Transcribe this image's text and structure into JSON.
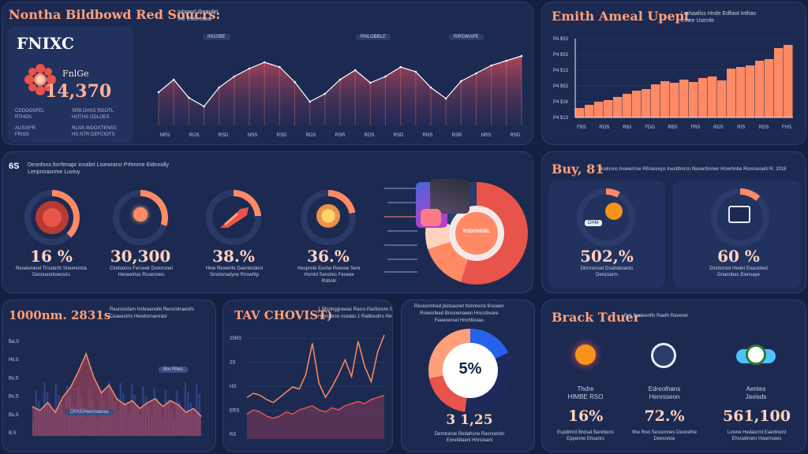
{
  "colors": {
    "bg": "#142042",
    "panel": "#1c2a52",
    "accent": "#ff8a65",
    "salmon": "#ffa07a",
    "red": "#e8534a",
    "blue": "#2563eb",
    "navy": "#1e2a5c"
  },
  "top_left": {
    "title": "Nontha Bildbowd Red Soucrs:",
    "header_note": [
      "Inbrand Ifreenfet",
      "Ine Eotensbal"
    ],
    "logo": "FNIXC",
    "label": "FnlGe",
    "value": "14,370",
    "stats": [
      [
        "CDDOOSFEL",
        "RTHOS"
      ],
      [
        "SRB DHSS RGOTL",
        "HOTHS GDLOES"
      ],
      [
        "AUSIXFR",
        "FRISS"
      ],
      [
        "RLNS INDOXTENSS",
        "HS NTR DEFCIOTS"
      ]
    ],
    "tags": [
      "INGSBE",
      "RNLOBBLE",
      "RIRDMAPE"
    ],
    "x_ticks": [
      "NRS",
      "ROS",
      "RSD",
      "NSS",
      "RSD",
      "RDS",
      "RSR",
      "ROS",
      "RSD",
      "RNS",
      "RSR",
      "NRS",
      "RSD"
    ]
  },
  "top_right": {
    "title": "Emith Ameal Upept",
    "header_note": [
      "Lorhaaliss Hnde Edfiast Inthas",
      "Inhee Ustrnfe"
    ],
    "y_ticks": [
      "PA $53",
      "P4 $53",
      "P4 $13",
      "P4 $53",
      "P4 $16",
      "P4 $13"
    ],
    "x_ticks": [
      "FBS",
      "ROS",
      "R63",
      "FDG",
      "RBS",
      "FRS",
      "RDS",
      "RIS",
      "RDS",
      "FHS"
    ]
  },
  "mid_left": {
    "badge": "6S",
    "header_note": [
      "Deonfons forrfenapr innabrt Lisewrarsr Prfenrne Eidnnolly",
      "Lenpnnasnme Luvioy"
    ],
    "gauges": [
      {
        "value": "16 %",
        "caption": [
          "Reseloranel Tinsdarfs Sneenotsla",
          "Desnuesnloeosirs"
        ]
      },
      {
        "value": "30,300",
        "caption": [
          "Cinduoros Ferseek Dsnoronel",
          "Heneetrlas Rsoesneis"
        ]
      },
      {
        "value": "38.%",
        "caption": [
          "Heie Reweirfe Daenterdeol",
          "Smotonadyne Rnswhtp"
        ]
      },
      {
        "value": "36.%",
        "caption": [
          "Hesprete Eeshe Roesoe Senr",
          "Hsrntd Sendres Feseee",
          "Rsboln"
        ]
      }
    ],
    "donut_label": "RSDOHDBL"
  },
  "mid_right": {
    "title": "Buy, 81",
    "header_note": "Hodnons Insewrrrse Rfrnesreps Inentlhnrsn Ifeewrrbnnwr Hnwrhnbe Ronnsesehl R. 2018",
    "gauges": [
      {
        "value": "502,%",
        "caption": [
          "Dlcnnonsel Dsahsboards",
          "Denzoarrn"
        ],
        "chip": "DHM"
      },
      {
        "value": "60 %",
        "caption": [
          "Disrbcrsrd Hedet Eeaushed",
          "Gnannbes Eiensaye"
        ]
      }
    ]
  },
  "bot1": {
    "title": "1000nm. 2831s",
    "header_note": [
      "Reuronsfarn Inrbraenslle Reosrotraeiofs",
      "Ceaeestrrs Heodreruenrasr"
    ],
    "y_ticks": [
      "Ba,S",
      "Hii,S",
      "Bs,S",
      "Bs,S",
      "Bs,S",
      "B,S"
    ],
    "tags": [
      "Bre Rhes",
      "DFAS/Hernroenas"
    ]
  },
  "bot2": {
    "title": "TAV CHOVIST)",
    "header_note": [
      "1 Bholnggrawas Rasrs Pasfonsre S",
      "Hiendorce nsedas 1 Rabbeslrrs Reelrs Inntre"
    ],
    "y_ticks": [
      "25RS",
      "2S",
      "HS",
      "ERS",
      "RS"
    ]
  },
  "bot3": {
    "header_note": [
      "Receonnhed pistsaonet fomnrerra finsreen",
      "Rreeorfeed Brxsnenaeen Hncrsbvare",
      "Feeerenset Hnchfesiao"
    ],
    "center": "5%",
    "value": "3 1,25",
    "caption": [
      "Demtraroe Redahsne Rasnrenbn",
      "Enretdtaenl Hhrsreanl"
    ]
  },
  "bot4": {
    "title": "Brack Tduer",
    "header_note": "Rer Systeenfin Raeth Ravenel",
    "items": [
      {
        "label": [
          "Thdre",
          "HIMBE RSO"
        ],
        "value": "16%",
        "caption": [
          "Eupdlmnt Brdsat Banrbeos",
          "Eppenne Ehsanrs"
        ]
      },
      {
        "label": [
          "Edreolhans",
          "Henrsseon"
        ],
        "value": "72.%",
        "caption": [
          "Ifne Rret Sessonnes Deonefne",
          "Deesnnse"
        ]
      },
      {
        "label": [
          "Aentes",
          "Javisds"
        ],
        "value": "561,100",
        "caption": [
          "Loisne Hedasrrnl Eaerlinerd",
          "Ehscellrrenr Haorrtsees"
        ]
      }
    ]
  },
  "chart_data": [
    {
      "type": "area",
      "id": "top_left_chart",
      "x_labels": [
        "NRS",
        "ROS",
        "RSD",
        "NSS",
        "RSD",
        "RDS",
        "RSR",
        "ROS",
        "RSD",
        "RNS",
        "RSR",
        "NRS",
        "RSD"
      ],
      "values": [
        42,
        58,
        35,
        24,
        48,
        62,
        72,
        80,
        74,
        55,
        30,
        40,
        58,
        70,
        54,
        62,
        74,
        68,
        48,
        34,
        56,
        66,
        76,
        82,
        88
      ]
    },
    {
      "type": "bar",
      "id": "top_right_chart",
      "x_labels": [
        "FBS",
        "ROS",
        "R63",
        "FDG",
        "RBS",
        "FRS",
        "RDS",
        "RIS",
        "RDS",
        "FHS"
      ],
      "values": [
        12,
        16,
        20,
        22,
        26,
        30,
        34,
        36,
        42,
        46,
        44,
        48,
        45,
        50,
        52,
        47,
        62,
        64,
        66,
        72,
        74,
        88,
        92
      ]
    },
    {
      "type": "area",
      "id": "bottom_left_chart",
      "values": [
        30,
        26,
        34,
        24,
        40,
        50,
        66,
        84,
        60,
        44,
        52,
        38,
        32,
        36,
        28,
        34,
        38,
        30,
        36,
        32,
        24,
        28,
        20
      ]
    },
    {
      "type": "line",
      "id": "bottom_mid_chart",
      "series": [
        {
          "values": [
            40,
            44,
            42,
            38,
            35,
            40,
            45,
            50,
            48,
            62,
            92,
            54,
            40,
            50,
            62,
            76,
            60,
            94,
            70,
            55,
            84,
            100
          ]
        },
        {
          "values": [
            24,
            28,
            26,
            22,
            20,
            22,
            26,
            24,
            28,
            30,
            32,
            28,
            26,
            30,
            28,
            32,
            34,
            36,
            34,
            38,
            40,
            42
          ]
        }
      ]
    }
  ]
}
